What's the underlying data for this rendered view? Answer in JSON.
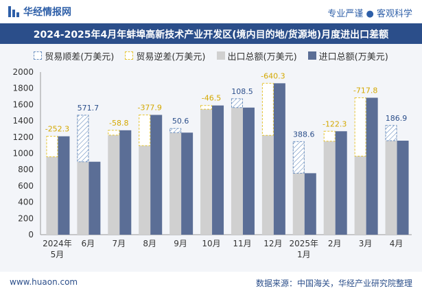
{
  "header": {
    "brand": "华经情报网",
    "tagline": "专业严谨 ● 客观科学"
  },
  "footer": {
    "site": "www.huaon.com",
    "source": "数据来源：中国海关，华经产业研究院整理"
  },
  "colors": {
    "export": "#d0d0d0",
    "import": "#5b6e96",
    "surplus": "#6a8fc0",
    "deficit": "#e5c430"
  },
  "chart_data": {
    "type": "bar",
    "title": "2024-2025年4月年蚌埠高新技术产业开发区(境内目的地/货源地)月度进出口差额",
    "legend": [
      "贸易顺差(万美元)",
      "贸易逆差(万美元)",
      "出口总额(万美元)",
      "进口总额(万美元)"
    ],
    "legend_position": "top",
    "categories": [
      "2024年\n5月",
      "6月",
      "7月",
      "8月",
      "9月",
      "10月",
      "11月",
      "12月",
      "2025年\n1月",
      "2月",
      "3月",
      "4月"
    ],
    "ylim": [
      0,
      2000
    ],
    "yticks": [
      0,
      200,
      400,
      600,
      800,
      1000,
      1200,
      1400,
      1600,
      1800,
      2000
    ],
    "grid": false,
    "series": [
      {
        "name": "出口总额(万美元)",
        "values": [
          958,
          1469,
          1225,
          1095,
          1306,
          1543,
          1672,
          1222,
          1144,
          1150,
          966,
          1343
        ]
      },
      {
        "name": "进口总额(万美元)",
        "values": [
          1210,
          897,
          1284,
          1473,
          1255,
          1589,
          1563,
          1862,
          756,
          1272,
          1684,
          1156
        ]
      }
    ],
    "balance": {
      "values": [
        -252.3,
        571.7,
        -58.8,
        -377.9,
        50.6,
        -46.5,
        108.5,
        -640.3,
        388.6,
        -122.3,
        -717.8,
        186.9
      ],
      "labels": [
        "-252.3",
        "571.7",
        "-58.8",
        "-377.9",
        "50.6",
        "-46.5",
        "108.5",
        "-640.3",
        "388.6",
        "-122.3",
        "-717.8",
        "186.9"
      ]
    }
  }
}
